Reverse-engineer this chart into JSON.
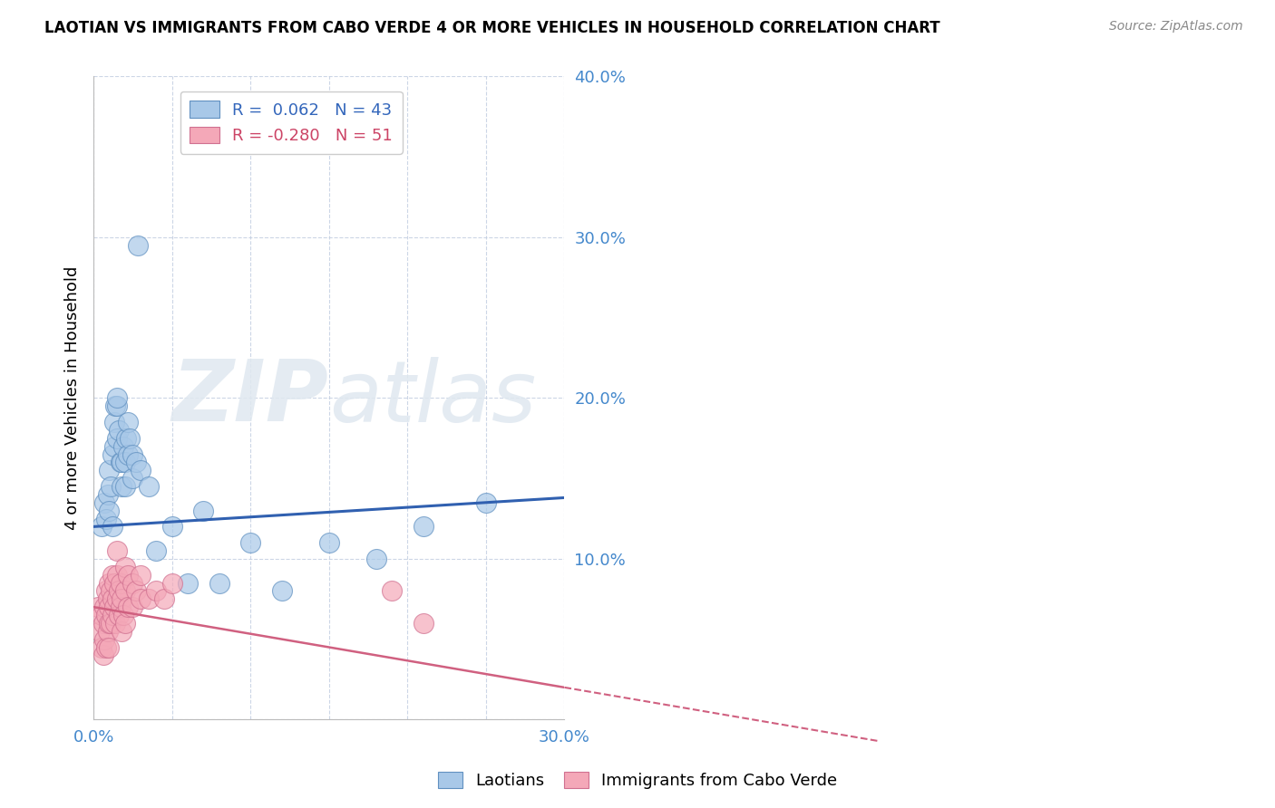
{
  "title": "LAOTIAN VS IMMIGRANTS FROM CABO VERDE 4 OR MORE VEHICLES IN HOUSEHOLD CORRELATION CHART",
  "source": "Source: ZipAtlas.com",
  "ylabel": "4 or more Vehicles in Household",
  "xlim": [
    0.0,
    0.3
  ],
  "ylim": [
    0.0,
    0.4
  ],
  "xticks": [
    0.0,
    0.05,
    0.1,
    0.15,
    0.2,
    0.25,
    0.3
  ],
  "yticks": [
    0.0,
    0.1,
    0.2,
    0.3,
    0.4
  ],
  "legend1_label": "Laotians",
  "legend2_label": "Immigrants from Cabo Verde",
  "R1": 0.062,
  "N1": 43,
  "R2": -0.28,
  "N2": 51,
  "blue_color": "#a8c8e8",
  "pink_color": "#f4a8b8",
  "blue_edge_color": "#6090c0",
  "pink_edge_color": "#d07090",
  "blue_line_color": "#3060b0",
  "pink_line_color": "#d06080",
  "watermark_zip": "ZIP",
  "watermark_atlas": "atlas",
  "blue_points_x": [
    0.005,
    0.007,
    0.008,
    0.009,
    0.01,
    0.01,
    0.011,
    0.012,
    0.012,
    0.013,
    0.013,
    0.014,
    0.015,
    0.015,
    0.015,
    0.016,
    0.017,
    0.018,
    0.018,
    0.019,
    0.02,
    0.02,
    0.021,
    0.022,
    0.022,
    0.023,
    0.025,
    0.025,
    0.027,
    0.028,
    0.03,
    0.035,
    0.04,
    0.05,
    0.06,
    0.07,
    0.08,
    0.1,
    0.12,
    0.15,
    0.18,
    0.21,
    0.25
  ],
  "blue_points_y": [
    0.12,
    0.135,
    0.125,
    0.14,
    0.13,
    0.155,
    0.145,
    0.12,
    0.165,
    0.17,
    0.185,
    0.195,
    0.175,
    0.195,
    0.2,
    0.18,
    0.16,
    0.145,
    0.16,
    0.17,
    0.145,
    0.16,
    0.175,
    0.165,
    0.185,
    0.175,
    0.15,
    0.165,
    0.16,
    0.295,
    0.155,
    0.145,
    0.105,
    0.12,
    0.085,
    0.13,
    0.085,
    0.11,
    0.08,
    0.11,
    0.1,
    0.12,
    0.135
  ],
  "pink_points_x": [
    0.003,
    0.004,
    0.005,
    0.005,
    0.006,
    0.006,
    0.007,
    0.007,
    0.008,
    0.008,
    0.008,
    0.009,
    0.009,
    0.01,
    0.01,
    0.01,
    0.01,
    0.011,
    0.011,
    0.012,
    0.012,
    0.012,
    0.013,
    0.013,
    0.014,
    0.015,
    0.015,
    0.015,
    0.016,
    0.016,
    0.017,
    0.017,
    0.018,
    0.018,
    0.019,
    0.02,
    0.02,
    0.02,
    0.022,
    0.022,
    0.025,
    0.025,
    0.027,
    0.03,
    0.03,
    0.035,
    0.04,
    0.045,
    0.05,
    0.19,
    0.21
  ],
  "pink_points_y": [
    0.07,
    0.055,
    0.045,
    0.065,
    0.04,
    0.06,
    0.05,
    0.07,
    0.045,
    0.065,
    0.08,
    0.055,
    0.075,
    0.045,
    0.06,
    0.07,
    0.085,
    0.06,
    0.08,
    0.065,
    0.075,
    0.09,
    0.07,
    0.085,
    0.06,
    0.075,
    0.09,
    0.105,
    0.065,
    0.08,
    0.07,
    0.085,
    0.055,
    0.075,
    0.065,
    0.06,
    0.08,
    0.095,
    0.07,
    0.09,
    0.07,
    0.085,
    0.08,
    0.075,
    0.09,
    0.075,
    0.08,
    0.075,
    0.085,
    0.08,
    0.06
  ]
}
